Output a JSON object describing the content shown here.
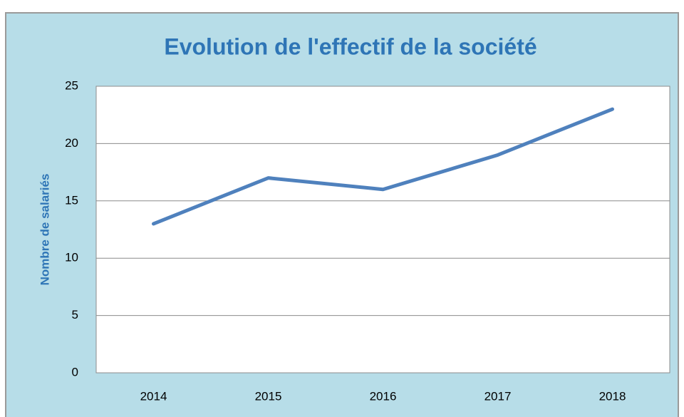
{
  "chart_data": {
    "type": "line",
    "title": "Evolution de l'effectif de la société",
    "y_label": "Nombre de salariés",
    "categories": [
      "2014",
      "2015",
      "2016",
      "2017",
      "2018"
    ],
    "series": [
      {
        "name": "Nombre de salariés",
        "color": "#4f81bd",
        "values": [
          13,
          17,
          16,
          19,
          23
        ]
      }
    ],
    "ylim": [
      0,
      25
    ],
    "yticks": [
      0,
      5,
      10,
      15,
      20,
      25
    ],
    "grid": true,
    "legend": false
  }
}
